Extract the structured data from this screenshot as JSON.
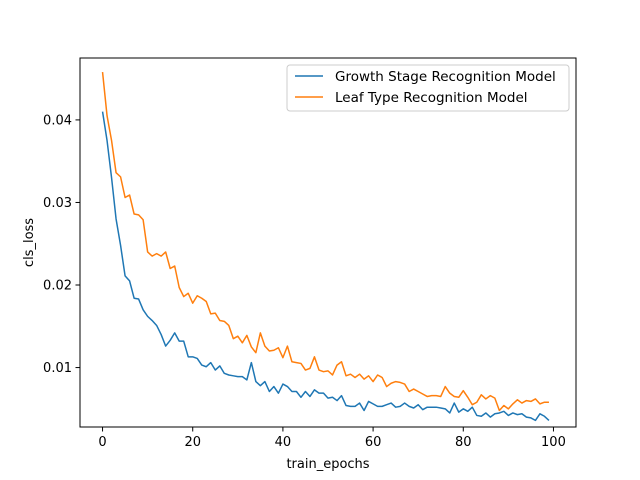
{
  "chart_data": {
    "type": "line",
    "title": "",
    "xlabel": "train_epochs",
    "ylabel": "cls_loss",
    "xlim": [
      -5,
      105
    ],
    "ylim": [
      0.0028,
      0.0475
    ],
    "xticks": [
      0,
      20,
      40,
      60,
      80,
      100
    ],
    "yticks": [
      0.01,
      0.02,
      0.03,
      0.04
    ],
    "ytick_labels": [
      "0.01",
      "0.02",
      "0.03",
      "0.04"
    ],
    "grid": false,
    "legend_position": "upper-right",
    "x": [
      0,
      1,
      2,
      3,
      4,
      5,
      6,
      7,
      8,
      9,
      10,
      11,
      12,
      13,
      14,
      15,
      16,
      17,
      18,
      19,
      20,
      21,
      22,
      23,
      24,
      25,
      26,
      27,
      28,
      29,
      30,
      31,
      32,
      33,
      34,
      35,
      36,
      37,
      38,
      39,
      40,
      41,
      42,
      43,
      44,
      45,
      46,
      47,
      48,
      49,
      50,
      51,
      52,
      53,
      54,
      55,
      56,
      57,
      58,
      59,
      60,
      61,
      62,
      63,
      64,
      65,
      66,
      67,
      68,
      69,
      70,
      71,
      72,
      73,
      74,
      75,
      76,
      77,
      78,
      79,
      80,
      81,
      82,
      83,
      84,
      85,
      86,
      87,
      88,
      89,
      90,
      91,
      92,
      93,
      94,
      95,
      96,
      97,
      98,
      99
    ],
    "series": [
      {
        "name": "Growth Stage Recognition Model",
        "color": "#1f77b4",
        "values": [
          0.041,
          0.0375,
          0.033,
          0.028,
          0.0248,
          0.0211,
          0.0205,
          0.0184,
          0.0183,
          0.017,
          0.0162,
          0.0157,
          0.0151,
          0.014,
          0.0126,
          0.0133,
          0.0142,
          0.0132,
          0.0132,
          0.0113,
          0.0113,
          0.0111,
          0.0103,
          0.0101,
          0.0106,
          0.0097,
          0.0102,
          0.0093,
          0.0091,
          0.009,
          0.0089,
          0.0089,
          0.0085,
          0.0106,
          0.0083,
          0.0078,
          0.0083,
          0.0071,
          0.0077,
          0.0069,
          0.008,
          0.0077,
          0.0071,
          0.0071,
          0.0064,
          0.0071,
          0.0065,
          0.0073,
          0.0069,
          0.0069,
          0.0063,
          0.0064,
          0.006,
          0.0066,
          0.0054,
          0.0053,
          0.0053,
          0.0057,
          0.0048,
          0.0059,
          0.0056,
          0.0053,
          0.0053,
          0.0055,
          0.0057,
          0.0052,
          0.0053,
          0.0057,
          0.0053,
          0.0051,
          0.0055,
          0.0049,
          0.0052,
          0.0052,
          0.0052,
          0.0051,
          0.005,
          0.0045,
          0.0057,
          0.0046,
          0.005,
          0.0047,
          0.0052,
          0.0042,
          0.0041,
          0.0045,
          0.004,
          0.0044,
          0.0045,
          0.0047,
          0.0042,
          0.0045,
          0.0043,
          0.0044,
          0.004,
          0.0039,
          0.0036,
          0.0044,
          0.0041,
          0.0036
        ]
      },
      {
        "name": "Leaf Type Recognition Model",
        "color": "#ff7f0e",
        "values": [
          0.0458,
          0.0405,
          0.0375,
          0.0336,
          0.0331,
          0.0306,
          0.0309,
          0.0286,
          0.0285,
          0.0279,
          0.024,
          0.0235,
          0.0238,
          0.0235,
          0.024,
          0.022,
          0.0223,
          0.0197,
          0.0186,
          0.019,
          0.0178,
          0.0187,
          0.0184,
          0.018,
          0.0165,
          0.0166,
          0.0157,
          0.0156,
          0.0151,
          0.0135,
          0.0138,
          0.013,
          0.0139,
          0.0125,
          0.0118,
          0.0142,
          0.0126,
          0.012,
          0.0121,
          0.0124,
          0.0112,
          0.0126,
          0.0107,
          0.0106,
          0.0105,
          0.0097,
          0.0099,
          0.0113,
          0.0097,
          0.0095,
          0.0096,
          0.0091,
          0.0103,
          0.0107,
          0.009,
          0.0092,
          0.0088,
          0.0092,
          0.0086,
          0.009,
          0.0083,
          0.0091,
          0.0088,
          0.0077,
          0.0081,
          0.0083,
          0.0082,
          0.008,
          0.0071,
          0.0074,
          0.0071,
          0.0068,
          0.0065,
          0.0066,
          0.0066,
          0.0065,
          0.0077,
          0.0069,
          0.0065,
          0.0064,
          0.0072,
          0.0064,
          0.0055,
          0.0058,
          0.0067,
          0.0062,
          0.0066,
          0.0063,
          0.0048,
          0.0054,
          0.005,
          0.0056,
          0.0061,
          0.0057,
          0.006,
          0.0059,
          0.0062,
          0.0056,
          0.0058,
          0.0058
        ]
      }
    ]
  }
}
